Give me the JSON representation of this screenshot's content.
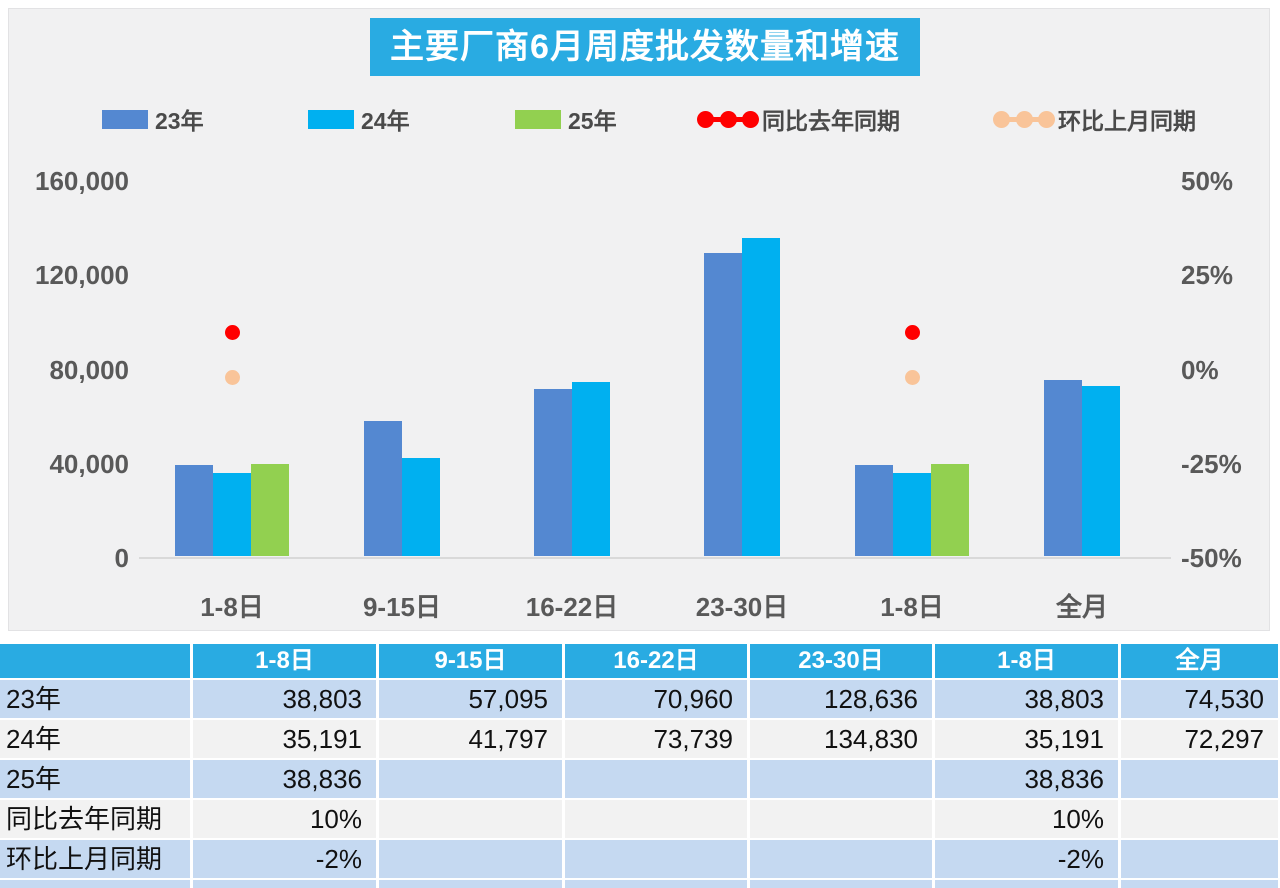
{
  "title": "主要厂商6月周度批发数量和增速",
  "legend": [
    {
      "label": "23年",
      "marker": "swatch",
      "color": "#5488D1"
    },
    {
      "label": "24年",
      "marker": "swatch",
      "color": "#00B0F0"
    },
    {
      "label": "25年",
      "marker": "swatch",
      "color": "#92D050"
    },
    {
      "label": "同比去年同期",
      "marker": "dots",
      "color": "#FF0000"
    },
    {
      "label": "环比上月同期",
      "marker": "dots",
      "color": "#F9C499"
    }
  ],
  "chart_data": {
    "type": "bar",
    "categories": [
      "1-8日",
      "9-15日",
      "16-22日",
      "23-30日",
      "1-8日",
      "全月"
    ],
    "series": [
      {
        "name": "23年",
        "color": "#5488D1",
        "values": [
          38803,
          57095,
          70960,
          128636,
          38803,
          74530
        ]
      },
      {
        "name": "24年",
        "color": "#00B0F0",
        "values": [
          35191,
          41797,
          73739,
          134830,
          35191,
          72297
        ]
      },
      {
        "name": "25年",
        "color": "#92D050",
        "values": [
          38836,
          null,
          null,
          null,
          38836,
          null
        ]
      }
    ],
    "point_series": [
      {
        "name": "同比去年同期",
        "color": "#FF0000",
        "unit": "%",
        "values": [
          10,
          null,
          null,
          null,
          10,
          null
        ]
      },
      {
        "name": "环比上月同期",
        "color": "#F9C499",
        "unit": "%",
        "values": [
          -2,
          null,
          null,
          null,
          -2,
          null
        ]
      }
    ],
    "left_axis": {
      "ticks": [
        "160,000",
        "120,000",
        "80,000",
        "40,000",
        "0"
      ],
      "min": 0,
      "max": 160000
    },
    "right_axis": {
      "ticks": [
        "50%",
        "25%",
        "0%",
        "-25%",
        "-50%"
      ],
      "min": -50,
      "max": 50
    },
    "grid": false,
    "legend_position": "top"
  },
  "table": {
    "header": [
      "",
      "1-8日",
      "9-15日",
      "16-22日",
      "23-30日",
      "1-8日",
      "全月"
    ],
    "rows": [
      {
        "label": "23年",
        "cells": [
          "38,803",
          "57,095",
          "70,960",
          "128,636",
          "38,803",
          "74,530"
        ]
      },
      {
        "label": "24年",
        "cells": [
          "35,191",
          "41,797",
          "73,739",
          "134,830",
          "35,191",
          "72,297"
        ]
      },
      {
        "label": "25年",
        "cells": [
          "38,836",
          "",
          "",
          "",
          "38,836",
          ""
        ]
      },
      {
        "label": "同比去年同期",
        "cells": [
          "10%",
          "",
          "",
          "",
          "10%",
          ""
        ]
      },
      {
        "label": "环比上月同期",
        "cells": [
          "-2%",
          "",
          "",
          "",
          "-2%",
          ""
        ]
      }
    ]
  },
  "colors": {
    "accent_cyan": "#29ABE2",
    "row_blue": "#C5D9F1",
    "row_gray": "#F2F2F2",
    "axis_text": "#595959",
    "panel_bg": "#F1F1F2"
  }
}
